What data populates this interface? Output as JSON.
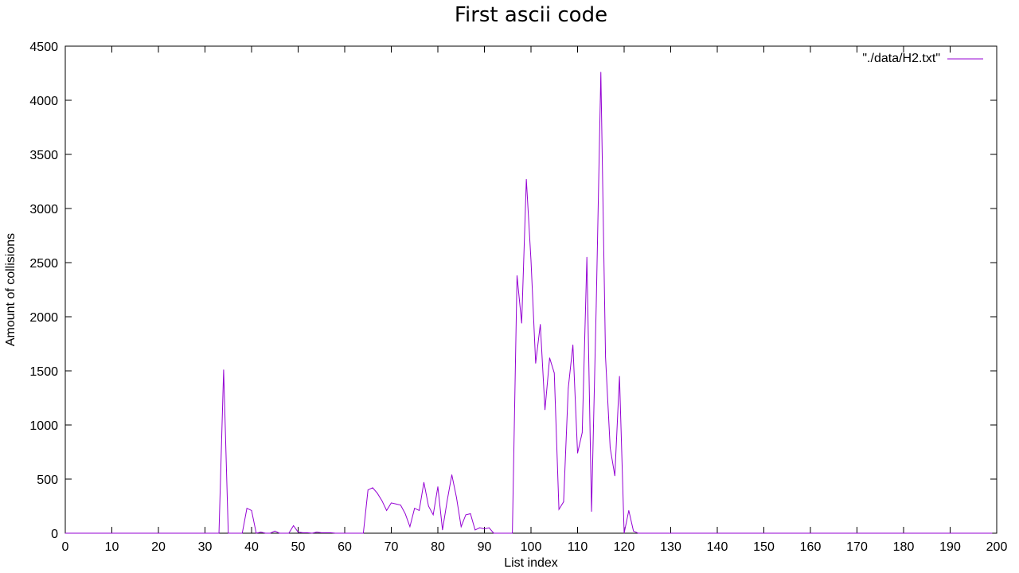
{
  "chart_data": {
    "type": "line",
    "title": "First ascii code",
    "xlabel": "List index",
    "ylabel": "Amount of collisions",
    "xlim": [
      0,
      200
    ],
    "ylim": [
      0,
      4500
    ],
    "xticks": [
      0,
      10,
      20,
      30,
      40,
      50,
      60,
      70,
      80,
      90,
      100,
      110,
      120,
      130,
      140,
      150,
      160,
      170,
      180,
      190,
      200
    ],
    "yticks": [
      0,
      500,
      1000,
      1500,
      2000,
      2500,
      3000,
      3500,
      4000,
      4500
    ],
    "grid": false,
    "legend_position": "top-right",
    "color": "#9400d3",
    "series": [
      {
        "name": "\"./data/H2.txt\"",
        "x": [
          0,
          1,
          2,
          3,
          4,
          5,
          6,
          7,
          8,
          9,
          10,
          11,
          12,
          13,
          14,
          15,
          16,
          17,
          18,
          19,
          20,
          21,
          22,
          23,
          24,
          25,
          26,
          27,
          28,
          29,
          30,
          31,
          32,
          33,
          34,
          35,
          36,
          37,
          38,
          39,
          40,
          41,
          42,
          43,
          44,
          45,
          46,
          47,
          48,
          49,
          50,
          51,
          52,
          53,
          54,
          55,
          56,
          57,
          58,
          59,
          60,
          61,
          62,
          63,
          64,
          65,
          66,
          67,
          68,
          69,
          70,
          71,
          72,
          73,
          74,
          75,
          76,
          77,
          78,
          79,
          80,
          81,
          82,
          83,
          84,
          85,
          86,
          87,
          88,
          89,
          90,
          91,
          92,
          93,
          94,
          95,
          96,
          97,
          98,
          99,
          100,
          101,
          102,
          103,
          104,
          105,
          106,
          107,
          108,
          109,
          110,
          111,
          112,
          113,
          114,
          115,
          116,
          117,
          118,
          119,
          120,
          121,
          122,
          123,
          124,
          125,
          126,
          127,
          128,
          129,
          130,
          131,
          132,
          133,
          134,
          135,
          136,
          137,
          138,
          139,
          140,
          141,
          142,
          143,
          144,
          145,
          146,
          147,
          148,
          149,
          150,
          151,
          152,
          153,
          154,
          155,
          156,
          157,
          158,
          159,
          160,
          161,
          162,
          163,
          164,
          165,
          166,
          167,
          168,
          169,
          170,
          171,
          172,
          173,
          174,
          175,
          176,
          177,
          178,
          179,
          180,
          181,
          182,
          183,
          184,
          185,
          186,
          187,
          188,
          189,
          190,
          191,
          192,
          193,
          194,
          195,
          196,
          197,
          198,
          199
        ],
        "y": [
          0,
          0,
          0,
          0,
          0,
          0,
          0,
          0,
          0,
          0,
          0,
          0,
          0,
          0,
          0,
          0,
          0,
          0,
          0,
          0,
          0,
          0,
          0,
          0,
          0,
          0,
          0,
          0,
          0,
          0,
          0,
          0,
          0,
          0,
          1510,
          0,
          0,
          0,
          0,
          230,
          210,
          0,
          10,
          0,
          0,
          20,
          0,
          0,
          0,
          70,
          10,
          5,
          5,
          0,
          10,
          5,
          5,
          5,
          0,
          0,
          0,
          0,
          0,
          0,
          0,
          400,
          420,
          370,
          300,
          210,
          280,
          270,
          260,
          180,
          60,
          230,
          210,
          470,
          250,
          170,
          430,
          30,
          300,
          540,
          330,
          60,
          170,
          180,
          30,
          50,
          40,
          50,
          0,
          0,
          0,
          0,
          0,
          2380,
          1940,
          3270,
          2520,
          1570,
          1930,
          1140,
          1620,
          1480,
          220,
          290,
          1340,
          1740,
          740,
          930,
          2550,
          200,
          2090,
          4260,
          1630,
          790,
          530,
          1450,
          0,
          210,
          20,
          0,
          0,
          0,
          0,
          0,
          0,
          0,
          0,
          0,
          0,
          0,
          0,
          0,
          0,
          0,
          0,
          0,
          0,
          0,
          0,
          0,
          0,
          0,
          0,
          0,
          0,
          0,
          0,
          0,
          0,
          0,
          0,
          0,
          0,
          0,
          0,
          0,
          0,
          0,
          0,
          0,
          0,
          0,
          0,
          0,
          0,
          0,
          0,
          0,
          0,
          0,
          0,
          0,
          0,
          0,
          0,
          0,
          0,
          0,
          0,
          0,
          0,
          0,
          0,
          0,
          0,
          0,
          0,
          0,
          0,
          0,
          0,
          0,
          0,
          0,
          0,
          0
        ]
      }
    ]
  }
}
